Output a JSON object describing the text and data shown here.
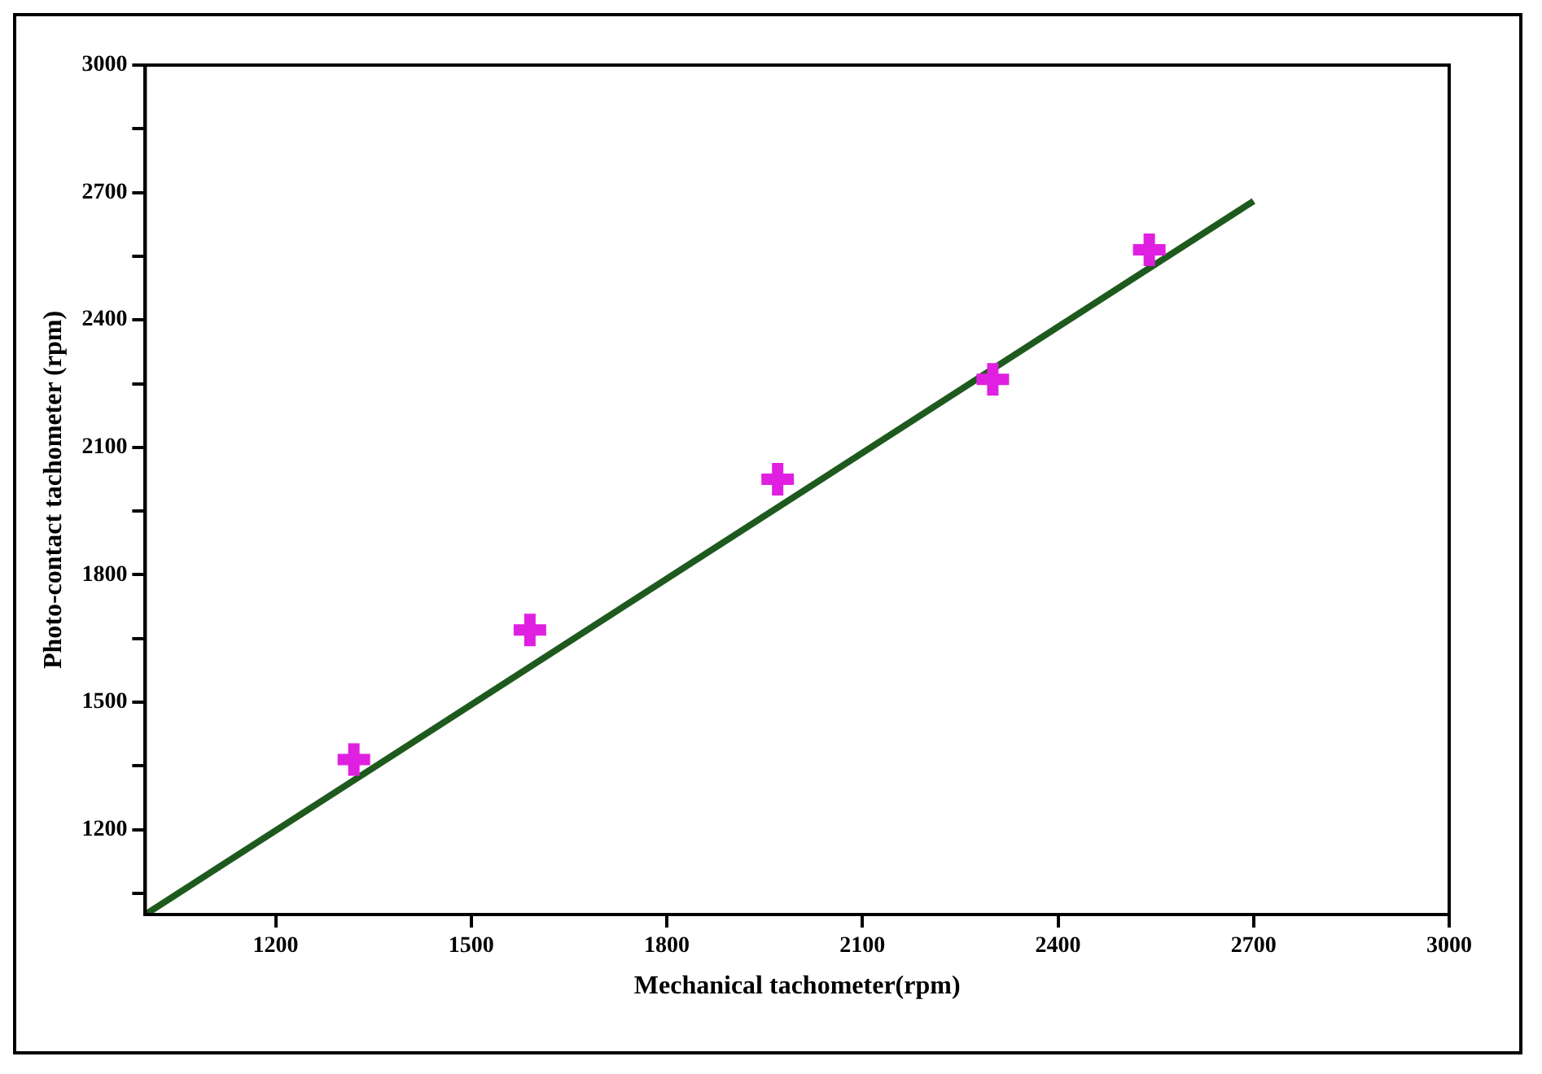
{
  "chart_data": {
    "type": "scatter",
    "xlabel": "Mechanical tachometer(rpm)",
    "ylabel": "Photo-contact tachometer (rpm)",
    "series": [
      {
        "color": "#e020e0",
        "marker": "cross",
        "x": [
          1320,
          1590,
          1970,
          2300,
          2540
        ],
        "values": [
          1365,
          1670,
          2025,
          2260,
          2565
        ]
      },
      {
        "type": "line",
        "marker": "none",
        "color": "#1e5a1e",
        "x": [
          1000,
          2700
        ],
        "values": [
          1000,
          2680
        ]
      }
    ],
    "legend": false,
    "grid": false,
    "xlim": [
      1000,
      3000
    ],
    "xticks": [
      1200,
      1500,
      1800,
      2100,
      2400,
      2700,
      3000
    ],
    "ylim": [
      1000,
      3000
    ],
    "yticks": [
      {
        "value": 1050,
        "label": null
      },
      1200,
      {
        "value": 1350,
        "label": null
      },
      1500,
      {
        "value": 1650,
        "label": null
      },
      1800,
      {
        "value": 1950,
        "label": null
      },
      2100,
      {
        "value": 2250,
        "label": null
      },
      2400,
      {
        "value": 2550,
        "label": null
      },
      2700,
      {
        "value": 2850,
        "label": null
      },
      3000
    ]
  }
}
